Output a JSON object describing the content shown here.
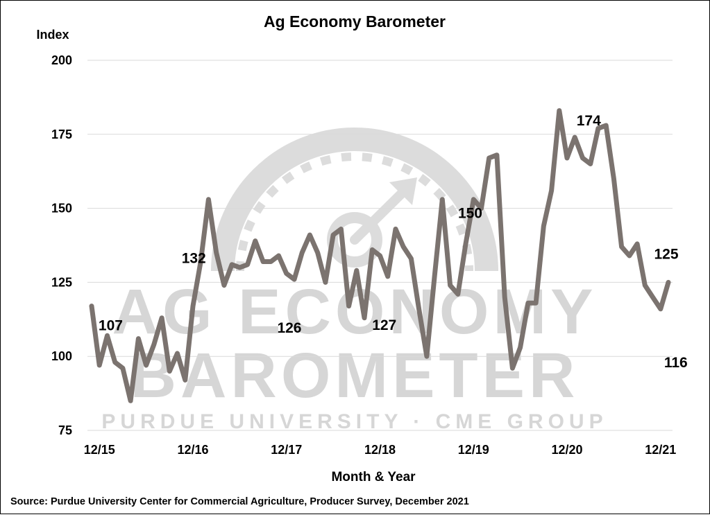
{
  "chart_data": {
    "type": "line",
    "title": "Ag Economy Barometer",
    "ylabel": "Index",
    "xlabel": "Month & Year",
    "ylim": [
      75,
      200
    ],
    "yticks": [
      75,
      100,
      125,
      150,
      175,
      200
    ],
    "xtick_labels": [
      "12/15",
      "12/16",
      "12/17",
      "12/18",
      "12/19",
      "12/20",
      "12/21"
    ],
    "grid": "horizontal",
    "line_color": "#7b736f",
    "series": [
      {
        "values": [
          117,
          97,
          107,
          98,
          96,
          85,
          106,
          97,
          104,
          113,
          95,
          101,
          92,
          117,
          132,
          153,
          135,
          124,
          131,
          130,
          131,
          139,
          132,
          132,
          134,
          128,
          126,
          135,
          141,
          135,
          125,
          141,
          143,
          117,
          129,
          113,
          136,
          134,
          127,
          143,
          137,
          133,
          116,
          100,
          127,
          153,
          124,
          121,
          138,
          153,
          150,
          167,
          168,
          120,
          96,
          103,
          118,
          118,
          144,
          156,
          183,
          167,
          174,
          167,
          165,
          177,
          178,
          160,
          137,
          134,
          138,
          124,
          120,
          116,
          125
        ]
      }
    ],
    "annotations": [
      {
        "text": "107",
        "index": 2,
        "value": 107
      },
      {
        "text": "132",
        "index": 14,
        "value": 132
      },
      {
        "text": "126",
        "index": 26,
        "value": 126
      },
      {
        "text": "127",
        "index": 38,
        "value": 127
      },
      {
        "text": "150",
        "index": 50,
        "value": 150
      },
      {
        "text": "174",
        "index": 62,
        "value": 174
      },
      {
        "text": "116",
        "index": 73,
        "value": 116
      },
      {
        "text": "125",
        "index": 74,
        "value": 125
      }
    ],
    "source": "Source: Purdue University Center for Commercial Agriculture, Producer Survey, December 2021"
  },
  "watermark": {
    "line1": "AG ECONOMY",
    "line2": "BAROMETER",
    "line3": "PURDUE UNIVERSITY · CME GROUP"
  }
}
